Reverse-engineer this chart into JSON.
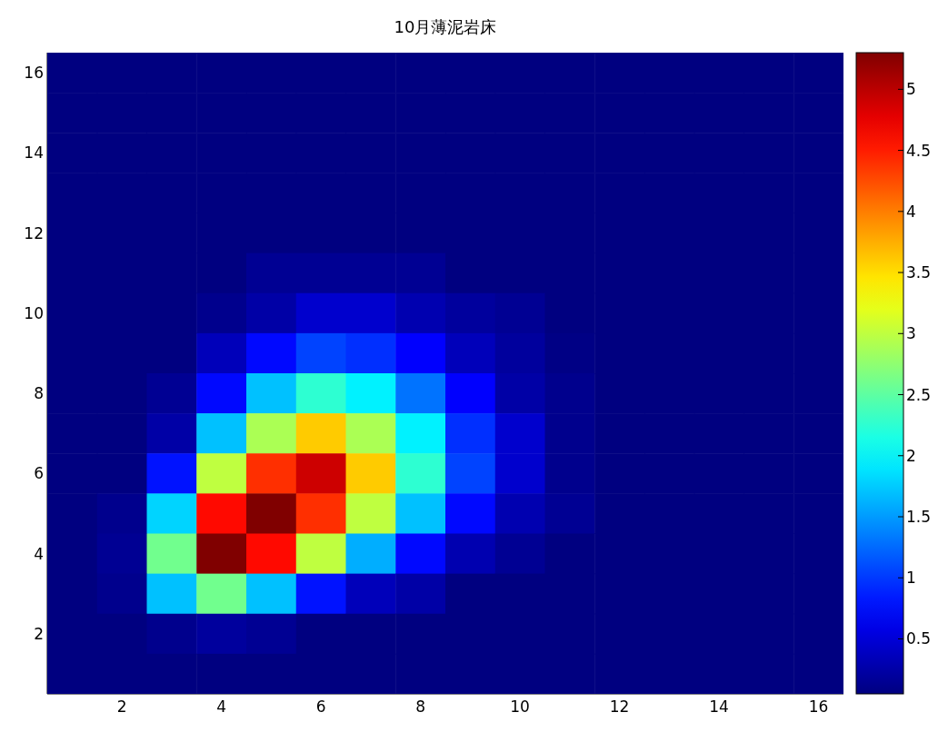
{
  "chart_data": {
    "type": "heatmap",
    "title": "10月薄泥岩床",
    "categories": [
      null,
      "2",
      null,
      "4",
      null,
      "6",
      null,
      "8",
      null,
      "10",
      null,
      "12",
      null,
      "14",
      null,
      "16"
    ],
    "y_categories": [
      "16",
      null,
      "14",
      null,
      "12",
      null,
      "10",
      null,
      "8",
      null,
      "6",
      null,
      "4",
      null,
      "2",
      null
    ],
    "cells": [
      [
        0.05,
        0.05,
        0.05,
        0.05,
        0.05,
        0.05,
        0.05,
        0.05,
        0.05,
        0.05,
        0.05,
        0.05,
        0.05,
        0.05,
        0.05,
        0.05
      ],
      [
        0.05,
        0.05,
        0.05,
        0.05,
        0.05,
        0.05,
        0.05,
        0.05,
        0.05,
        0.05,
        0.05,
        0.05,
        0.05,
        0.05,
        0.05,
        0.05
      ],
      [
        0.05,
        0.05,
        0.05,
        0.05,
        0.05,
        0.05,
        0.05,
        0.05,
        0.05,
        0.05,
        0.05,
        0.05,
        0.05,
        0.05,
        0.05,
        0.05
      ],
      [
        0.05,
        0.05,
        0.05,
        0.05,
        0.05,
        0.05,
        0.05,
        0.05,
        0.05,
        0.05,
        0.05,
        0.05,
        0.05,
        0.05,
        0.05,
        0.05
      ],
      [
        0.05,
        0.05,
        0.05,
        0.05,
        0.05,
        0.05,
        0.05,
        0.05,
        0.05,
        0.05,
        0.05,
        0.05,
        0.05,
        0.05,
        0.05,
        0.05
      ],
      [
        0.05,
        0.05,
        0.05,
        0.05,
        0.15,
        0.15,
        0.15,
        0.15,
        0.05,
        0.05,
        0.05,
        0.05,
        0.05,
        0.05,
        0.05,
        0.05
      ],
      [
        0.05,
        0.05,
        0.05,
        0.12,
        0.25,
        0.45,
        0.45,
        0.3,
        0.2,
        0.15,
        0.05,
        0.05,
        0.05,
        0.05,
        0.05,
        0.05
      ],
      [
        0.05,
        0.05,
        0.05,
        0.35,
        0.75,
        1.05,
        0.95,
        0.7,
        0.35,
        0.2,
        0.08,
        0.05,
        0.05,
        0.05,
        0.05,
        0.05
      ],
      [
        0.05,
        0.05,
        0.15,
        0.75,
        1.7,
        2.25,
        1.95,
        1.3,
        0.7,
        0.25,
        0.12,
        0.05,
        0.05,
        0.05,
        0.05,
        0.05
      ],
      [
        0.05,
        0.05,
        0.25,
        1.7,
        2.9,
        3.6,
        2.9,
        1.95,
        0.95,
        0.45,
        0.12,
        0.05,
        0.05,
        0.05,
        0.05,
        0.05
      ],
      [
        0.05,
        0.05,
        0.8,
        3.0,
        4.4,
        4.9,
        3.6,
        2.25,
        1.05,
        0.45,
        0.12,
        0.05,
        0.05,
        0.05,
        0.05,
        0.05
      ],
      [
        0.05,
        0.12,
        1.8,
        4.6,
        5.3,
        4.4,
        3.0,
        1.7,
        0.75,
        0.3,
        0.15,
        0.05,
        0.05,
        0.05,
        0.05,
        0.05
      ],
      [
        0.05,
        0.15,
        2.6,
        5.3,
        4.6,
        3.0,
        1.6,
        0.75,
        0.3,
        0.15,
        0.05,
        0.05,
        0.05,
        0.05,
        0.05,
        0.05
      ],
      [
        0.05,
        0.12,
        1.7,
        2.6,
        1.7,
        0.8,
        0.35,
        0.25,
        0.05,
        0.05,
        0.05,
        0.05,
        0.05,
        0.05,
        0.05,
        0.05
      ],
      [
        0.05,
        0.05,
        0.12,
        0.2,
        0.15,
        0.05,
        0.05,
        0.05,
        0.05,
        0.05,
        0.05,
        0.05,
        0.05,
        0.05,
        0.05,
        0.05
      ],
      [
        0.05,
        0.05,
        0.05,
        0.05,
        0.05,
        0.05,
        0.05,
        0.05,
        0.05,
        0.05,
        0.05,
        0.05,
        0.05,
        0.05,
        0.05,
        0.05
      ]
    ],
    "clim": [
      0.05,
      5.3
    ],
    "cticks": [
      0.5,
      1,
      1.5,
      2,
      2.5,
      3,
      3.5,
      4,
      4.5,
      5
    ]
  }
}
